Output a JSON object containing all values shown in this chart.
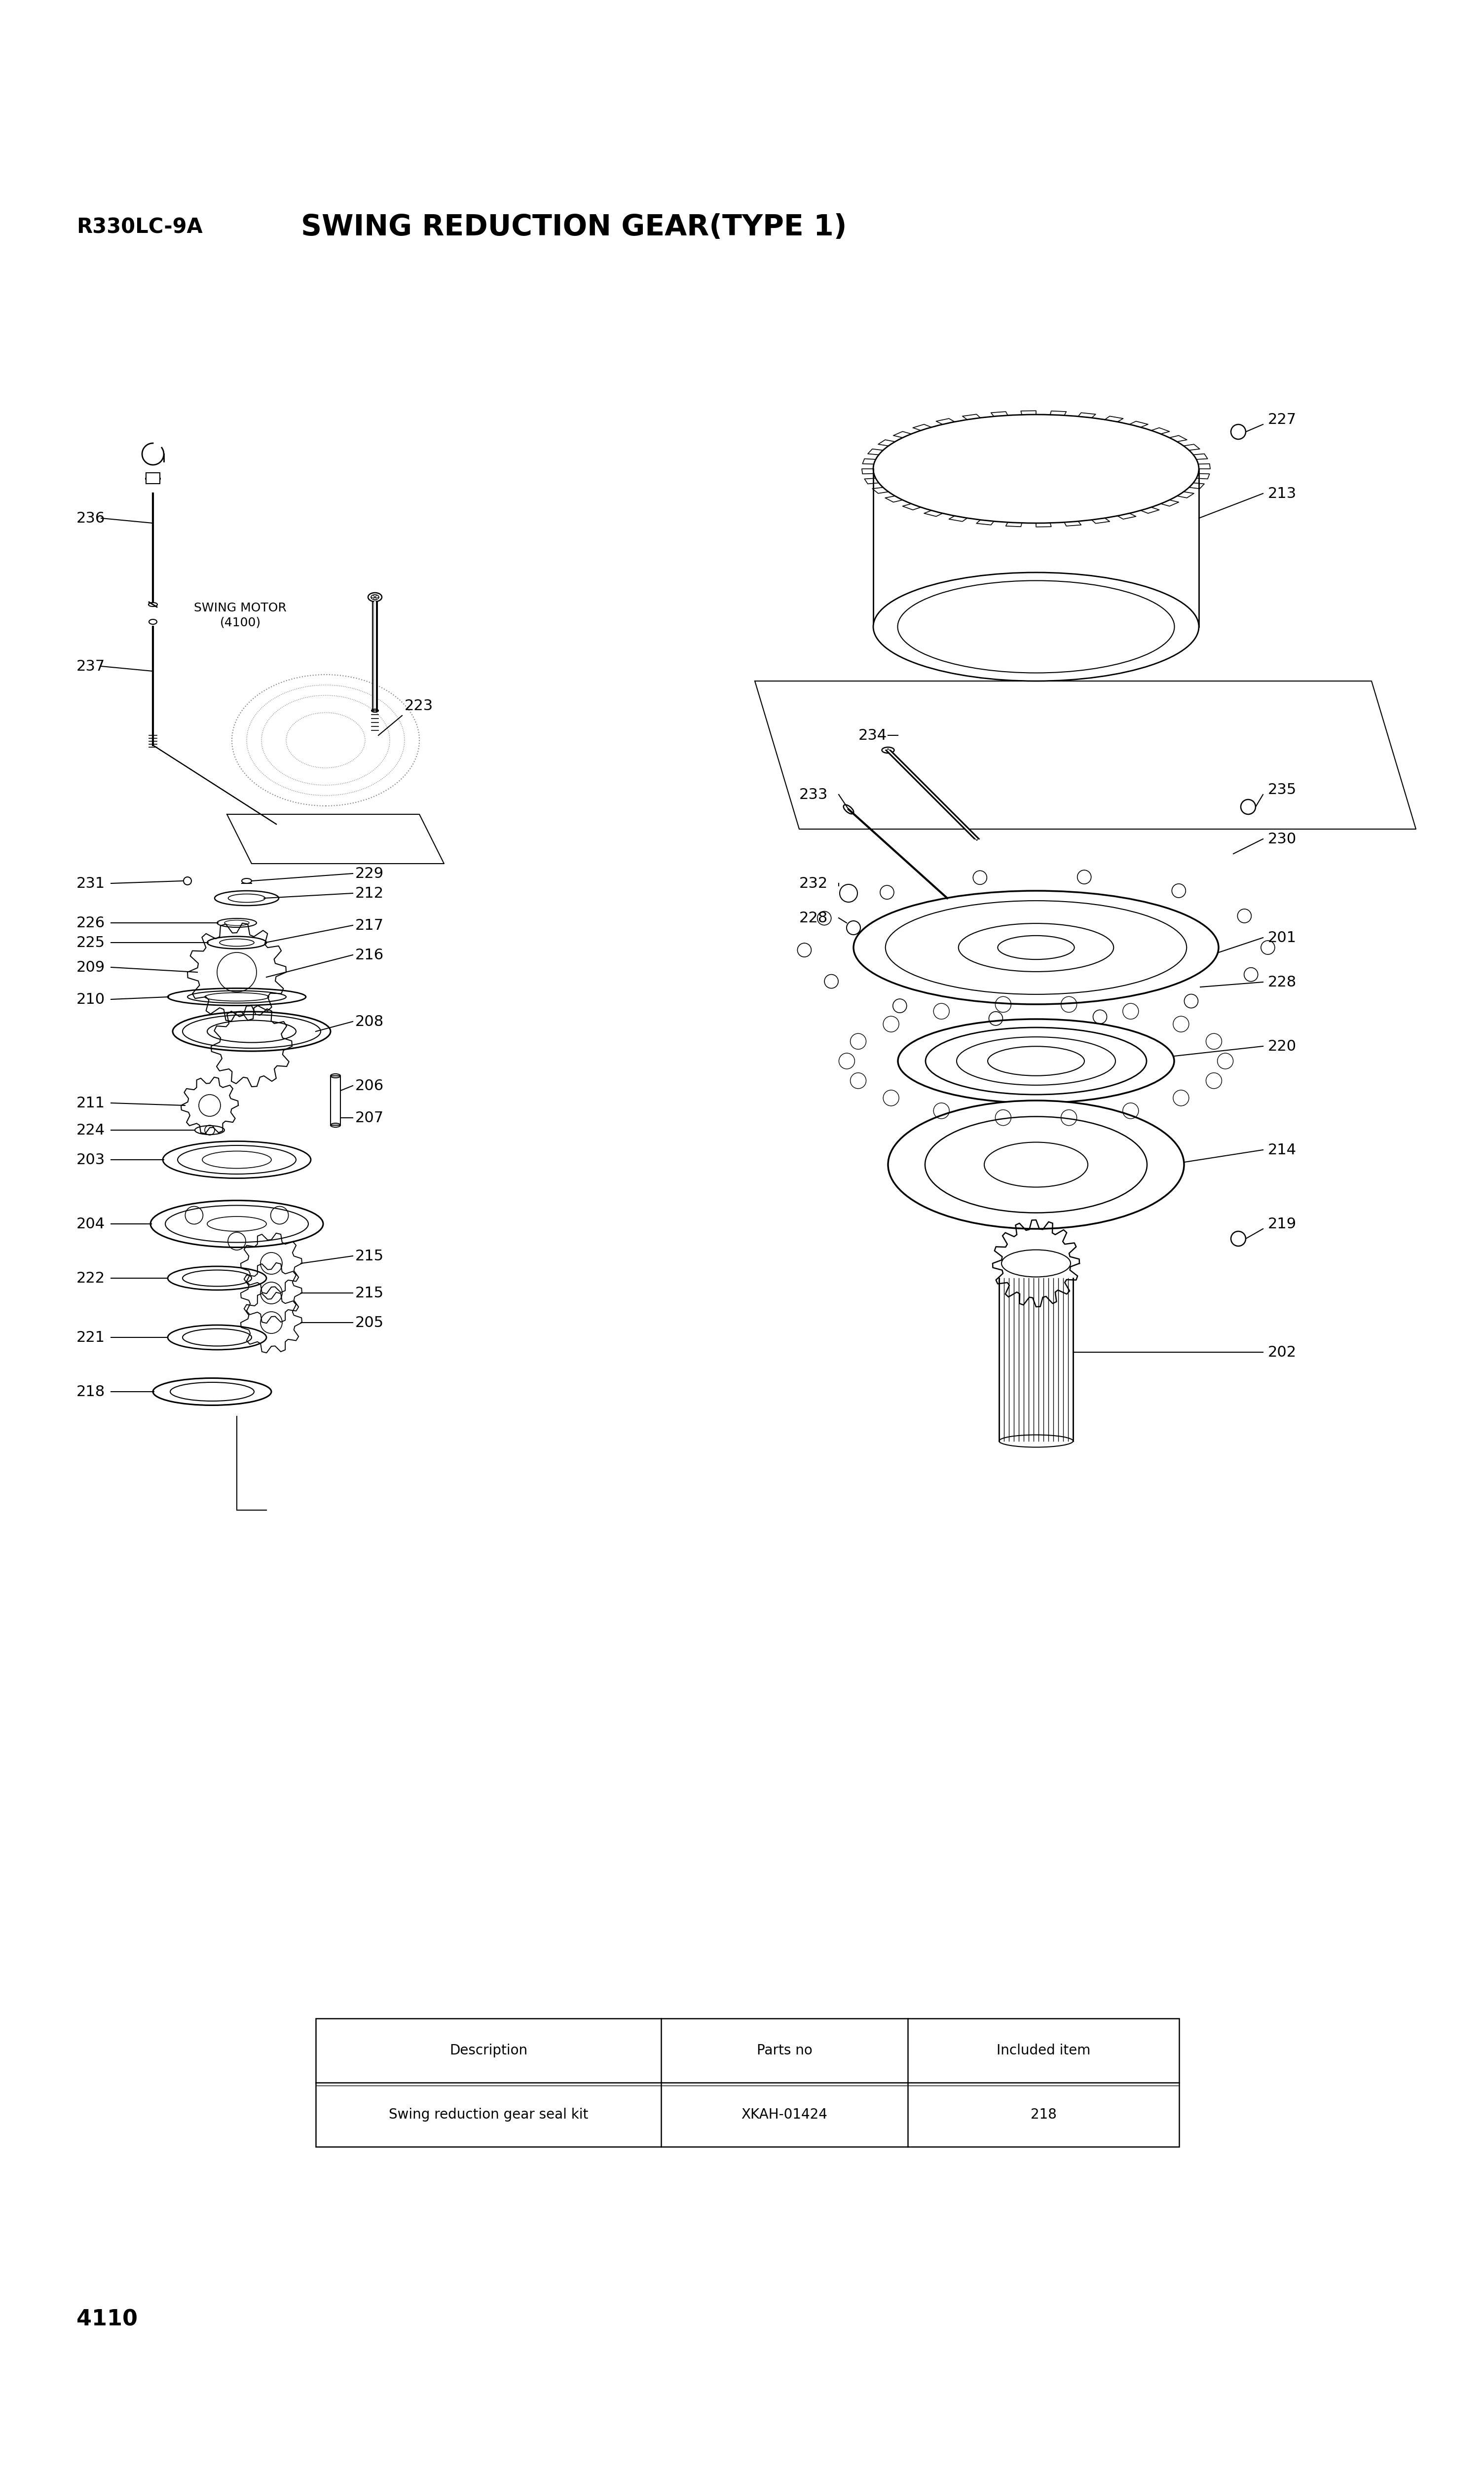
{
  "bg_color": "#ffffff",
  "title_left": "R330LC-9A",
  "title_main": "SWING REDUCTION GEAR(TYPE 1)",
  "page_number": "4110",
  "table_headers": [
    "Description",
    "Parts no",
    "Included item"
  ],
  "table_row": [
    "Swing reduction gear seal kit",
    "XKAH-01424",
    "218"
  ],
  "swing_motor_label": "SWING MOTOR\n(4100)",
  "line_color": "#000000",
  "text_color": "#000000"
}
